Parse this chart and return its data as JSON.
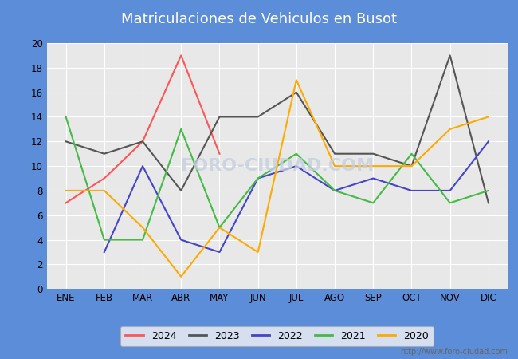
{
  "title": "Matriculaciones de Vehiculos en Busot",
  "title_bg_color": "#5b8dd9",
  "title_text_color": "#ffffff",
  "months": [
    "ENE",
    "FEB",
    "MAR",
    "ABR",
    "MAY",
    "JUN",
    "JUL",
    "AGO",
    "SEP",
    "OCT",
    "NOV",
    "DIC"
  ],
  "series": {
    "2024": {
      "color": "#ff5555",
      "data": [
        7,
        9,
        12,
        19,
        11,
        null,
        null,
        null,
        null,
        null,
        null,
        null
      ]
    },
    "2023": {
      "color": "#555555",
      "data": [
        12,
        11,
        12,
        8,
        14,
        14,
        16,
        11,
        11,
        10,
        19,
        7
      ]
    },
    "2022": {
      "color": "#4444cc",
      "data": [
        null,
        3,
        10,
        4,
        3,
        9,
        10,
        8,
        9,
        8,
        8,
        12
      ]
    },
    "2021": {
      "color": "#44bb44",
      "data": [
        14,
        4,
        4,
        13,
        5,
        9,
        11,
        8,
        7,
        11,
        7,
        8
      ]
    },
    "2020": {
      "color": "#ffaa00",
      "data": [
        8,
        8,
        5,
        1,
        5,
        3,
        17,
        10,
        10,
        10,
        13,
        14
      ]
    }
  },
  "ylim": [
    0,
    20
  ],
  "yticks": [
    0,
    2,
    4,
    6,
    8,
    10,
    12,
    14,
    16,
    18,
    20
  ],
  "plot_bg_color": "#e8e8e8",
  "grid_color": "#ffffff",
  "fig_bg_color": "#ffffff",
  "watermark": "FORO-CIUDAD.COM",
  "watermark_color": "#c5cfe0",
  "url": "http://www.foro-ciudad.com"
}
